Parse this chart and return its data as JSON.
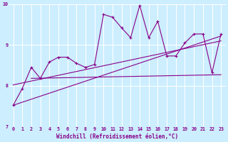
{
  "xlabel": "Windchill (Refroidissement éolien,°C)",
  "xlim": [
    -0.5,
    23.5
  ],
  "ylim": [
    7,
    10
  ],
  "yticks": [
    7,
    8,
    9,
    10
  ],
  "xticks": [
    0,
    1,
    2,
    3,
    4,
    5,
    6,
    7,
    8,
    9,
    10,
    11,
    12,
    13,
    14,
    15,
    16,
    17,
    18,
    19,
    20,
    21,
    22,
    23
  ],
  "bg_color": "#cceeff",
  "grid_color": "#ffffff",
  "line_color": "#880088",
  "line1_x": [
    0,
    1,
    2,
    3,
    4,
    5,
    6,
    7,
    8,
    9,
    10,
    11,
    12,
    13,
    14,
    15,
    16,
    17,
    18,
    19,
    20,
    21,
    22,
    23
  ],
  "line1_y": [
    7.52,
    7.93,
    8.45,
    8.18,
    8.58,
    8.7,
    8.7,
    8.55,
    8.45,
    8.52,
    9.75,
    9.68,
    9.42,
    9.18,
    9.97,
    9.18,
    9.58,
    8.73,
    8.73,
    9.05,
    9.27,
    9.27,
    8.32,
    9.27
  ],
  "trend1_x": [
    0,
    23
  ],
  "trend1_y": [
    7.52,
    9.22
  ],
  "trend2_x": [
    0,
    23
  ],
  "trend2_y": [
    8.02,
    9.1
  ],
  "trend3_x": [
    2,
    23
  ],
  "trend3_y": [
    8.18,
    8.27
  ]
}
